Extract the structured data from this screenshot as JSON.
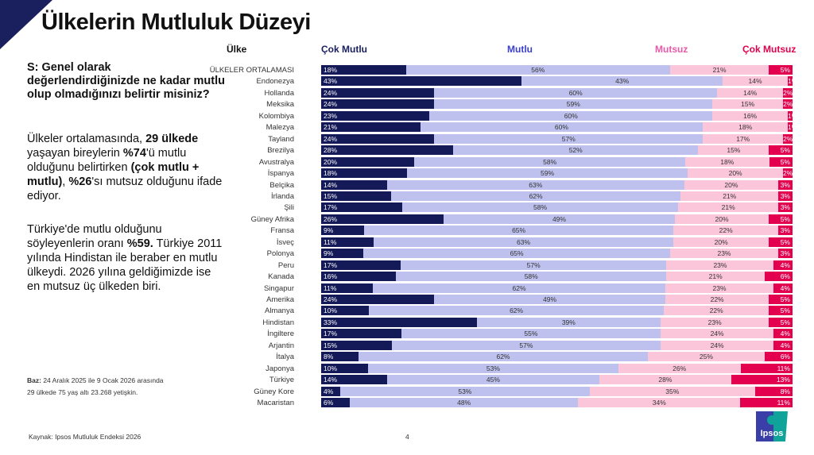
{
  "title": "Ülkelerin Mutluluk Düzeyi",
  "question": "S: Genel olarak değerlendirdiğinizde ne kadar mutlu olup olmadığınızı belirtir misiniz?",
  "paragraph1": [
    {
      "t": "Ülkeler ortalamasında, ",
      "b": false
    },
    {
      "t": "29 ülkede",
      "b": true
    },
    {
      "t": " yaşayan bireylerin ",
      "b": false
    },
    {
      "t": "%74",
      "b": true
    },
    {
      "t": "'ü mutlu olduğunu belirtirken ",
      "b": false
    },
    {
      "t": "(çok mutlu + mutlu)",
      "b": true
    },
    {
      "t": ", ",
      "b": false
    },
    {
      "t": "%26",
      "b": true
    },
    {
      "t": "'sı mutsuz olduğunu ifade ediyor.",
      "b": false
    }
  ],
  "paragraph2": [
    {
      "t": "Türkiye'de  mutlu olduğunu söyleyenlerin oranı ",
      "b": false
    },
    {
      "t": "%59.",
      "b": true
    },
    {
      "t": " Türkiye 2011 yılında Hindistan ile beraber en mutlu ülkeydi. 2026 yılına geldiğimizde ise en mutsuz üç ülkeden biri.",
      "b": false
    }
  ],
  "base": {
    "label": "Baz:",
    "line1": " 24 Aralık 2025 ile 9 Ocak 2026 arasında",
    "line2": "29 ülkede 75 yaş altı 23.268 yetişkin."
  },
  "source": "Kaynak: Ipsos Mutluluk Endeksi 2026",
  "page_number": "4",
  "logo_text": "Ipsos",
  "chart_data": {
    "type": "bar",
    "orientation": "horizontal-stacked-100",
    "category_header": "Ülke",
    "series": [
      {
        "name": "Çok Mutlu",
        "color": "#141a58"
      },
      {
        "name": "Mutlu",
        "color": "#bec1ee"
      },
      {
        "name": "Mutsuz",
        "color": "#fcc6da"
      },
      {
        "name": "Çok Mutsuz",
        "color": "#e3004f"
      }
    ],
    "categories": [
      "ÜLKELER ORTALAMASI",
      "Endonezya",
      "Hollanda",
      "Meksika",
      "Kolombiya",
      "Malezya",
      "Tayland",
      "Brezilya",
      "Avustralya",
      "İspanya",
      "Belçika",
      "İrlanda",
      "Şili",
      "Güney Afrika",
      "Fransa",
      "İsveç",
      "Polonya",
      "Peru",
      "Kanada",
      "Singapur",
      "Amerika",
      "Almanya",
      "Hindistan",
      "İngiltere",
      "Arjantin",
      "İtalya",
      "Japonya",
      "Türkiye",
      "Güney Kore",
      "Macaristan"
    ],
    "values": [
      [
        18,
        56,
        21,
        5
      ],
      [
        43,
        43,
        14,
        1
      ],
      [
        24,
        60,
        14,
        2
      ],
      [
        24,
        59,
        15,
        2
      ],
      [
        23,
        60,
        16,
        1
      ],
      [
        21,
        60,
        18,
        1
      ],
      [
        24,
        57,
        17,
        2
      ],
      [
        28,
        52,
        15,
        5
      ],
      [
        20,
        58,
        18,
        5
      ],
      [
        18,
        59,
        20,
        2
      ],
      [
        14,
        63,
        20,
        3
      ],
      [
        15,
        62,
        21,
        3
      ],
      [
        17,
        58,
        21,
        3
      ],
      [
        26,
        49,
        20,
        5
      ],
      [
        9,
        65,
        22,
        3
      ],
      [
        11,
        63,
        20,
        5
      ],
      [
        9,
        65,
        23,
        3
      ],
      [
        17,
        57,
        23,
        4
      ],
      [
        16,
        58,
        21,
        6
      ],
      [
        11,
        62,
        23,
        4
      ],
      [
        24,
        49,
        22,
        5
      ],
      [
        10,
        62,
        22,
        5
      ],
      [
        33,
        39,
        23,
        5
      ],
      [
        17,
        55,
        24,
        4
      ],
      [
        15,
        57,
        24,
        4
      ],
      [
        8,
        62,
        25,
        6
      ],
      [
        10,
        53,
        26,
        11
      ],
      [
        14,
        45,
        28,
        13
      ],
      [
        4,
        53,
        35,
        8
      ],
      [
        6,
        48,
        34,
        11
      ]
    ],
    "unit": "%"
  }
}
